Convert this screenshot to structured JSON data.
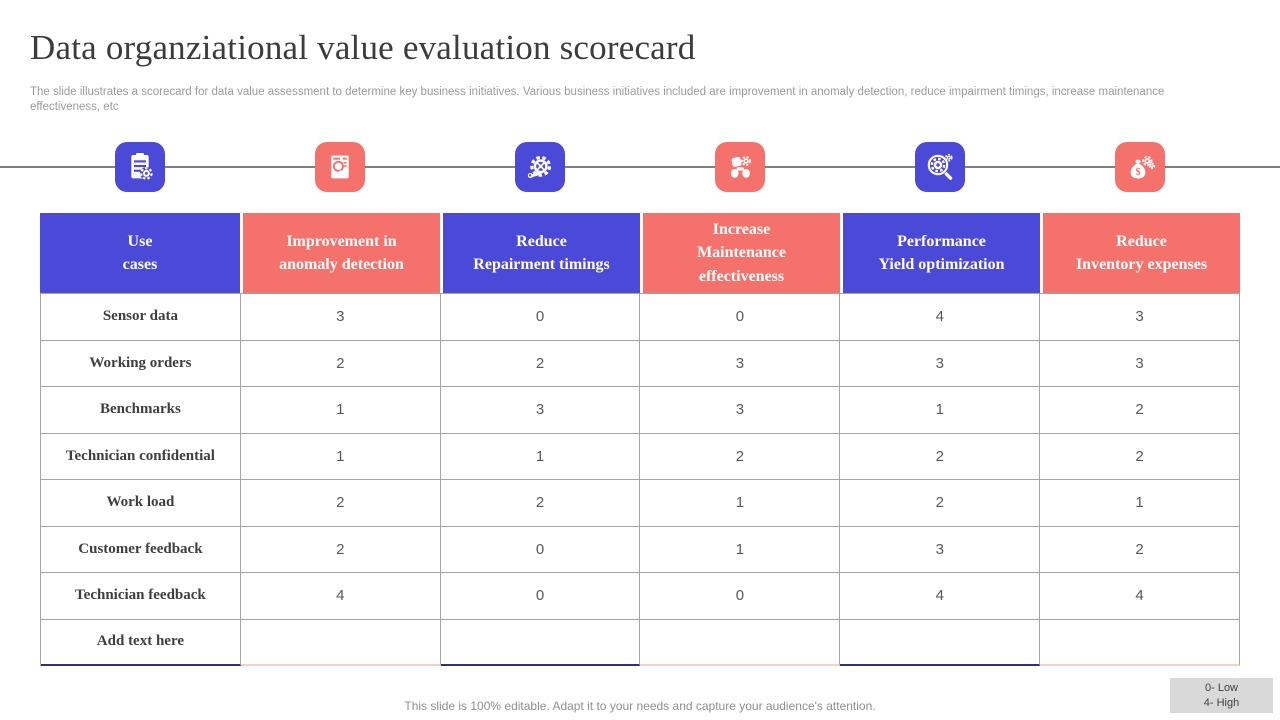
{
  "slide": {
    "title": "Data organziational value evaluation scorecard",
    "description": "The slide illustrates a scorecard for data value assessment to determine key business initiatives. Various business initiatives included are improvement in anomaly detection, reduce impairment timings, increase maintenance effectiveness, etc",
    "footer": "This slide is 100% editable. Adapt it to your needs and capture your audience's attention.",
    "legend": {
      "low": "0- Low",
      "high": "4- High"
    }
  },
  "colors": {
    "blue": "#4b49d8",
    "red": "#f4726b",
    "table_border": "#a6a6a6",
    "navy_underline": "#31317c",
    "pink_underline": "#f6cfc8",
    "legend_bg": "#d9d9d9"
  },
  "icons": [
    {
      "name": "clipboard-gear-icon",
      "color": "#4b49d8"
    },
    {
      "name": "document-search-icon",
      "color": "#f4726b"
    },
    {
      "name": "gear-wrench-icon",
      "color": "#4b49d8"
    },
    {
      "name": "machine-gears-icon",
      "color": "#f4726b"
    },
    {
      "name": "search-gear-icon",
      "color": "#4b49d8"
    },
    {
      "name": "money-gear-icon",
      "color": "#f4726b"
    }
  ],
  "table": {
    "columns": [
      {
        "label": [
          "Use",
          "cases"
        ],
        "color": "blue"
      },
      {
        "label": [
          "Improvement in",
          "anomaly detection"
        ],
        "color": "red"
      },
      {
        "label": [
          "Reduce",
          "Repairment timings"
        ],
        "color": "blue"
      },
      {
        "label": [
          "Increase",
          "Maintenance",
          "effectiveness"
        ],
        "color": "red"
      },
      {
        "label": [
          "Performance",
          "Yield optimization"
        ],
        "color": "blue"
      },
      {
        "label": [
          "Reduce",
          "Inventory expenses"
        ],
        "color": "red"
      }
    ],
    "rows": [
      {
        "label": "Sensor data",
        "values": [
          "3",
          "0",
          "0",
          "4",
          "3"
        ]
      },
      {
        "label": "Working orders",
        "values": [
          "2",
          "2",
          "3",
          "3",
          "3"
        ]
      },
      {
        "label": "Benchmarks",
        "values": [
          "1",
          "3",
          "3",
          "1",
          "2"
        ]
      },
      {
        "label": "Technician confidential",
        "values": [
          "1",
          "1",
          "2",
          "2",
          "2"
        ]
      },
      {
        "label": "Work load",
        "values": [
          "2",
          "2",
          "1",
          "2",
          "1"
        ]
      },
      {
        "label": "Customer feedback",
        "values": [
          "2",
          "0",
          "1",
          "3",
          "2"
        ]
      },
      {
        "label": "Technician feedback",
        "values": [
          "4",
          "0",
          "0",
          "4",
          "4"
        ]
      },
      {
        "label": "Add text here",
        "values": [
          "",
          "",
          "",
          "",
          ""
        ]
      }
    ]
  }
}
